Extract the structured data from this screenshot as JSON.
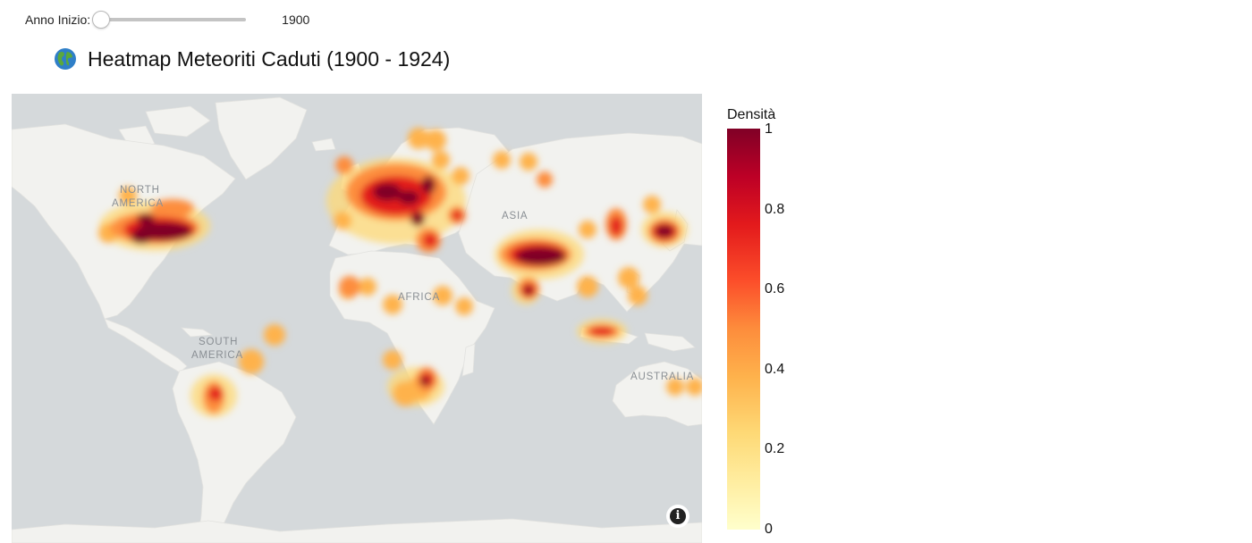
{
  "slider": {
    "label": "Anno Inizio:",
    "value": "1900",
    "position_fraction": 0.0
  },
  "title": {
    "text": "Heatmap Meteoriti Caduti (1900 - 1924)",
    "icon": "globe-americas-icon"
  },
  "map": {
    "labels": {
      "north_america_1": "NORTH",
      "north_america_2": "AMERICA",
      "south_america_1": "SOUTH",
      "south_america_2": "AMERICA",
      "africa": "AFRICA",
      "asia": "ASIA",
      "australia": "AUSTRALIA"
    },
    "info_icon": "info-icon"
  },
  "colorbar": {
    "title": "Densità",
    "ticks": [
      "1",
      "0.8",
      "0.6",
      "0.4",
      "0.2",
      "0"
    ]
  },
  "colors": {
    "land": "#f2f2ef",
    "water": "#d5d9db"
  }
}
